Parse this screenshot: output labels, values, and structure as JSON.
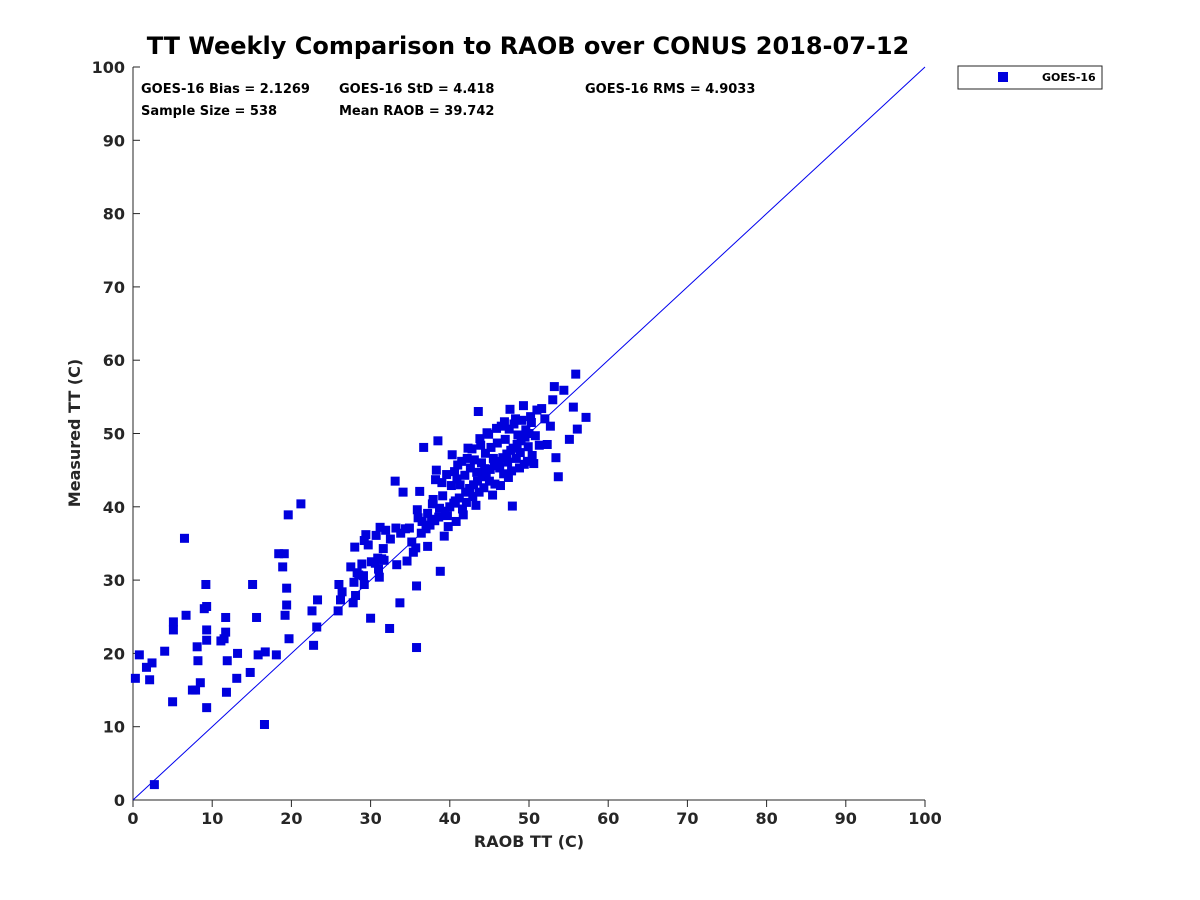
{
  "chart_data": {
    "type": "scatter",
    "title": "TT Weekly Comparison to RAOB over CONUS 2018-07-12",
    "xlabel": "RAOB TT (C)",
    "ylabel": "Measured TT (C)",
    "xlim": [
      0,
      100
    ],
    "ylim": [
      0,
      100
    ],
    "xticks": [
      0,
      10,
      20,
      30,
      40,
      50,
      60,
      70,
      80,
      90,
      100
    ],
    "yticks": [
      0,
      10,
      20,
      30,
      40,
      50,
      60,
      70,
      80,
      90,
      100
    ],
    "grid": false,
    "legend": {
      "position": "outside-top-right",
      "entries": [
        "GOES-16"
      ]
    },
    "reference_line": {
      "x": [
        0,
        100
      ],
      "y": [
        0,
        100
      ],
      "color": "#0000ee"
    },
    "stats": {
      "bias": "GOES-16 Bias = 2.1269",
      "std": "GOES-16 StD = 4.418",
      "rms": "GOES-16 RMS = 4.9033",
      "sample": "Sample Size = 538",
      "mean": "Mean RAOB = 39.742"
    },
    "series": [
      {
        "name": "GOES-16",
        "color": "#0000dd",
        "marker": "square",
        "points": [
          [
            0.3,
            16.6
          ],
          [
            0.8,
            19.8
          ],
          [
            1.7,
            18.1
          ],
          [
            2.1,
            16.4
          ],
          [
            2.4,
            18.7
          ],
          [
            2.7,
            2.1
          ],
          [
            4.0,
            20.3
          ],
          [
            5.0,
            13.4
          ],
          [
            5.1,
            24.3
          ],
          [
            5.1,
            23.2
          ],
          [
            6.5,
            35.7
          ],
          [
            6.7,
            25.2
          ],
          [
            7.5,
            15.0
          ],
          [
            7.9,
            15.0
          ],
          [
            8.1,
            20.9
          ],
          [
            8.2,
            19.0
          ],
          [
            8.5,
            16.0
          ],
          [
            9.0,
            26.1
          ],
          [
            9.2,
            29.4
          ],
          [
            9.3,
            26.4
          ],
          [
            9.3,
            23.2
          ],
          [
            9.3,
            21.8
          ],
          [
            9.3,
            12.6
          ],
          [
            11.1,
            21.7
          ],
          [
            11.5,
            22.0
          ],
          [
            11.7,
            24.9
          ],
          [
            11.7,
            22.9
          ],
          [
            11.8,
            14.7
          ],
          [
            11.9,
            19.0
          ],
          [
            13.1,
            16.6
          ],
          [
            13.2,
            20.0
          ],
          [
            14.8,
            17.4
          ],
          [
            15.1,
            29.4
          ],
          [
            15.6,
            24.9
          ],
          [
            15.8,
            19.8
          ],
          [
            16.6,
            10.3
          ],
          [
            16.7,
            20.2
          ],
          [
            18.1,
            19.8
          ],
          [
            18.4,
            33.6
          ],
          [
            18.9,
            31.8
          ],
          [
            19.1,
            33.6
          ],
          [
            19.2,
            25.2
          ],
          [
            19.4,
            26.6
          ],
          [
            19.4,
            28.9
          ],
          [
            19.6,
            38.9
          ],
          [
            19.7,
            22.0
          ],
          [
            21.2,
            40.4
          ],
          [
            22.6,
            25.8
          ],
          [
            22.8,
            21.1
          ],
          [
            23.2,
            23.6
          ],
          [
            23.3,
            27.3
          ],
          [
            25.9,
            25.8
          ],
          [
            26.0,
            29.4
          ],
          [
            26.2,
            27.3
          ],
          [
            26.4,
            28.4
          ],
          [
            27.5,
            31.8
          ],
          [
            27.8,
            26.9
          ],
          [
            27.9,
            29.7
          ],
          [
            28.0,
            34.5
          ],
          [
            28.1,
            27.9
          ],
          [
            28.3,
            31.0
          ],
          [
            28.5,
            30.7
          ],
          [
            28.9,
            32.2
          ],
          [
            29.1,
            30.6
          ],
          [
            29.2,
            29.4
          ],
          [
            29.2,
            35.4
          ],
          [
            29.4,
            36.2
          ],
          [
            29.7,
            34.8
          ],
          [
            30.0,
            24.8
          ],
          [
            30.1,
            32.5
          ],
          [
            30.6,
            32.3
          ],
          [
            30.7,
            36.1
          ],
          [
            30.9,
            33.0
          ],
          [
            31.0,
            31.5
          ],
          [
            31.1,
            30.4
          ],
          [
            31.2,
            37.2
          ],
          [
            31.4,
            32.9
          ],
          [
            31.6,
            34.3
          ],
          [
            31.7,
            32.7
          ],
          [
            31.9,
            36.8
          ],
          [
            32.4,
            23.4
          ],
          [
            32.5,
            35.6
          ],
          [
            33.1,
            43.5
          ],
          [
            33.2,
            37.1
          ],
          [
            33.3,
            32.1
          ],
          [
            33.7,
            26.9
          ],
          [
            33.8,
            36.4
          ],
          [
            34.1,
            42.0
          ],
          [
            34.4,
            37.0
          ],
          [
            34.6,
            32.6
          ],
          [
            34.9,
            37.1
          ],
          [
            35.2,
            35.2
          ],
          [
            35.4,
            33.8
          ],
          [
            35.7,
            34.4
          ],
          [
            35.8,
            29.2
          ],
          [
            35.8,
            20.8
          ],
          [
            35.9,
            39.6
          ],
          [
            36.0,
            38.5
          ],
          [
            36.2,
            42.1
          ],
          [
            36.4,
            36.4
          ],
          [
            36.7,
            48.1
          ],
          [
            37.0,
            37.0
          ],
          [
            37.2,
            34.6
          ],
          [
            37.5,
            37.5
          ],
          [
            37.7,
            38.3
          ],
          [
            37.8,
            40.4
          ],
          [
            38.1,
            38.1
          ],
          [
            38.3,
            45.0
          ],
          [
            38.5,
            49.0
          ],
          [
            38.6,
            38.6
          ],
          [
            38.8,
            31.2
          ],
          [
            39.0,
            43.3
          ],
          [
            39.3,
            36.0
          ],
          [
            39.4,
            39.4
          ],
          [
            39.7,
            38.8
          ],
          [
            40.0,
            40.0
          ],
          [
            40.3,
            47.1
          ],
          [
            40.5,
            40.5
          ],
          [
            40.7,
            40.8
          ],
          [
            40.9,
            43.8
          ],
          [
            41.2,
            41.2
          ],
          [
            41.5,
            46.2
          ],
          [
            41.7,
            38.9
          ],
          [
            42.0,
            42.0
          ],
          [
            42.2,
            46.6
          ],
          [
            42.5,
            42.5
          ],
          [
            42.8,
            47.9
          ],
          [
            43.0,
            43.0
          ],
          [
            43.3,
            40.2
          ],
          [
            43.5,
            43.5
          ],
          [
            43.6,
            53.0
          ],
          [
            43.9,
            48.4
          ],
          [
            44.1,
            44.1
          ],
          [
            44.4,
            45.2
          ],
          [
            44.6,
            44.6
          ],
          [
            44.9,
            49.9
          ],
          [
            45.1,
            45.1
          ],
          [
            45.4,
            41.6
          ],
          [
            45.6,
            45.6
          ],
          [
            45.9,
            50.7
          ],
          [
            46.2,
            46.2
          ],
          [
            46.4,
            42.9
          ],
          [
            46.7,
            46.7
          ],
          [
            46.9,
            51.6
          ],
          [
            47.2,
            47.2
          ],
          [
            47.4,
            44.0
          ],
          [
            47.6,
            53.3
          ],
          [
            47.7,
            47.7
          ],
          [
            47.9,
            40.1
          ],
          [
            48.0,
            48.0
          ],
          [
            48.3,
            52.0
          ],
          [
            48.5,
            48.5
          ],
          [
            48.8,
            45.3
          ],
          [
            49.0,
            49.0
          ],
          [
            49.3,
            53.8
          ],
          [
            49.5,
            49.5
          ],
          [
            49.8,
            46.2
          ],
          [
            50.0,
            50.0
          ],
          [
            50.3,
            51.5
          ],
          [
            50.6,
            45.9
          ],
          [
            51.0,
            53.2
          ],
          [
            51.3,
            48.4
          ],
          [
            51.6,
            53.4
          ],
          [
            52.0,
            52.0
          ],
          [
            52.3,
            48.5
          ],
          [
            52.7,
            51.0
          ],
          [
            53.0,
            54.6
          ],
          [
            53.2,
            56.4
          ],
          [
            53.4,
            46.7
          ],
          [
            53.7,
            44.1
          ],
          [
            54.4,
            55.9
          ],
          [
            55.1,
            49.2
          ],
          [
            55.6,
            53.6
          ],
          [
            55.9,
            58.1
          ],
          [
            56.1,
            50.6
          ],
          [
            57.2,
            52.2
          ],
          [
            36.5,
            38.0
          ],
          [
            37.2,
            39.1
          ],
          [
            37.9,
            41.0
          ],
          [
            38.2,
            43.7
          ],
          [
            38.7,
            39.8
          ],
          [
            39.1,
            41.5
          ],
          [
            39.6,
            44.4
          ],
          [
            39.8,
            37.3
          ],
          [
            40.2,
            42.9
          ],
          [
            40.6,
            44.8
          ],
          [
            40.8,
            38.0
          ],
          [
            41.0,
            45.7
          ],
          [
            41.3,
            43.0
          ],
          [
            41.6,
            39.7
          ],
          [
            41.9,
            44.3
          ],
          [
            42.1,
            40.6
          ],
          [
            42.3,
            48.0
          ],
          [
            42.6,
            45.3
          ],
          [
            42.9,
            41.4
          ],
          [
            43.1,
            46.4
          ],
          [
            43.4,
            44.7
          ],
          [
            43.7,
            42.0
          ],
          [
            43.8,
            49.3
          ],
          [
            44.0,
            46.0
          ],
          [
            44.3,
            42.6
          ],
          [
            44.5,
            47.3
          ],
          [
            44.7,
            50.1
          ],
          [
            45.0,
            43.5
          ],
          [
            45.2,
            48.1
          ],
          [
            45.5,
            46.6
          ],
          [
            45.7,
            43.1
          ],
          [
            46.0,
            48.7
          ],
          [
            46.3,
            45.3
          ],
          [
            46.5,
            51.0
          ],
          [
            46.8,
            44.5
          ],
          [
            47.0,
            49.2
          ],
          [
            47.3,
            46.1
          ],
          [
            47.5,
            50.6
          ],
          [
            47.8,
            44.9
          ],
          [
            48.1,
            51.3
          ],
          [
            48.4,
            46.6
          ],
          [
            48.6,
            49.8
          ],
          [
            48.9,
            47.4
          ],
          [
            49.1,
            51.8
          ],
          [
            49.4,
            45.8
          ],
          [
            49.6,
            50.5
          ],
          [
            49.9,
            48.2
          ],
          [
            50.2,
            52.3
          ],
          [
            50.4,
            47.0
          ],
          [
            50.8,
            49.7
          ]
        ]
      }
    ]
  }
}
